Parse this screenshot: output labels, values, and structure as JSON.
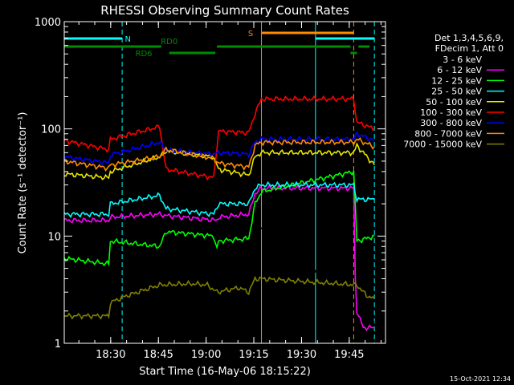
{
  "chart_data": {
    "type": "line",
    "title": "RHESSI Observing Summary Count Rates",
    "xlabel": "Start Time (16-May-06 18:15:22)",
    "ylabel": "Count Rate (s⁻¹ detector⁻¹)",
    "yscale": "log",
    "ylim": [
      1,
      1000
    ],
    "xlim_minutes": [
      0,
      101
    ],
    "x_ticks": [
      {
        "label": "18:30",
        "t": 14.6
      },
      {
        "label": "18:45",
        "t": 29.6
      },
      {
        "label": "19:00",
        "t": 44.6
      },
      {
        "label": "19:15",
        "t": 59.6
      },
      {
        "label": "19:30",
        "t": 74.6
      },
      {
        "label": "19:45",
        "t": 89.6
      }
    ],
    "y_ticks": [
      {
        "label": "1",
        "v": 1
      },
      {
        "label": "10",
        "v": 10
      },
      {
        "label": "100",
        "v": 100
      },
      {
        "label": "1000",
        "v": 1000
      }
    ],
    "legend_header": [
      "Det 1,3,4,5,6,9,",
      "FDecim 1, Att 0"
    ],
    "legend_position": "right",
    "timestamp": "15-Oct-2021 12:34",
    "flags": [
      {
        "name": "N",
        "label": "N",
        "color": "#00ffff",
        "segments": [
          [
            0,
            18.2
          ],
          [
            79,
            97.5
          ]
        ],
        "label_t": 20
      },
      {
        "name": "S",
        "label": "S",
        "color": "#ff8c00",
        "segments": [
          [
            62,
            91
          ]
        ],
        "label_t": 58.6
      },
      {
        "name": "RD0",
        "label": "RD0",
        "color": "#008c00",
        "segments": [
          [
            0,
            30.5
          ],
          [
            48,
            90
          ],
          [
            92.5,
            96
          ]
        ],
        "label_t": 33
      },
      {
        "name": "RD6",
        "label": "RD6",
        "color": "#008c00",
        "segments": [
          [
            33,
            47.5
          ],
          [
            90,
            92
          ]
        ],
        "label_t": 25
      }
    ],
    "markers": [
      {
        "t": 18.2,
        "color": "#00ffff",
        "style": "dashed"
      },
      {
        "t": 62.0,
        "color": "#ff8c00",
        "style": "solid"
      },
      {
        "t": 79.0,
        "color": "#00ffff",
        "style": "solid"
      },
      {
        "t": 91.0,
        "color": "#ff8c00",
        "style": "dashed"
      },
      {
        "t": 97.5,
        "color": "#00ffff",
        "style": "dashed"
      }
    ],
    "series": [
      {
        "name": "3 - 6 keV",
        "color": "#000000",
        "points": [
          [
            0,
            1.7
          ],
          [
            14,
            1.7
          ],
          [
            14.5,
            2.5
          ],
          [
            20,
            2.6
          ],
          [
            30,
            3.3
          ],
          [
            40,
            3.5
          ],
          [
            45,
            3.0
          ],
          [
            48,
            2.7
          ],
          [
            55,
            2.6
          ],
          [
            58,
            2.5
          ],
          [
            60,
            4
          ],
          [
            61,
            8
          ],
          [
            61.5,
            12
          ],
          [
            62,
            12
          ],
          [
            92,
            2.5
          ],
          [
            95,
            1.6
          ],
          [
            97.5,
            1.6
          ]
        ]
      },
      {
        "name": "6 - 12 keV",
        "color": "#ff00ff",
        "points": [
          [
            0,
            14
          ],
          [
            14,
            14
          ],
          [
            14.5,
            15
          ],
          [
            30,
            16
          ],
          [
            32,
            15.5
          ],
          [
            48,
            14
          ],
          [
            48.5,
            15
          ],
          [
            58,
            16
          ],
          [
            60,
            25
          ],
          [
            62,
            28
          ],
          [
            91,
            28
          ],
          [
            91.5,
            4
          ],
          [
            92,
            2
          ],
          [
            94,
            1.4
          ],
          [
            97.5,
            1.4
          ]
        ]
      },
      {
        "name": "12 - 25 keV",
        "color": "#00ff00",
        "points": [
          [
            0,
            6.2
          ],
          [
            14,
            5.5
          ],
          [
            14.5,
            9
          ],
          [
            30,
            8
          ],
          [
            32,
            11
          ],
          [
            47,
            10
          ],
          [
            48,
            7.5
          ],
          [
            48.5,
            9
          ],
          [
            58,
            9.5
          ],
          [
            60,
            20
          ],
          [
            62,
            26
          ],
          [
            91,
            40
          ],
          [
            92,
            9
          ],
          [
            95,
            9.5
          ],
          [
            97.5,
            10
          ]
        ]
      },
      {
        "name": "25 - 50 keV",
        "color": "#00ffff",
        "points": [
          [
            0,
            16
          ],
          [
            14,
            16
          ],
          [
            14.5,
            20
          ],
          [
            30,
            24
          ],
          [
            32,
            18
          ],
          [
            47,
            16
          ],
          [
            48.5,
            20
          ],
          [
            58,
            20
          ],
          [
            60,
            28
          ],
          [
            62,
            30
          ],
          [
            91,
            30
          ],
          [
            92,
            22
          ],
          [
            97.5,
            22
          ]
        ]
      },
      {
        "name": "50 - 100 keV",
        "color": "#e6e600",
        "points": [
          [
            0,
            38
          ],
          [
            14,
            35
          ],
          [
            14.5,
            40
          ],
          [
            30,
            55
          ],
          [
            32,
            62
          ],
          [
            47,
            55
          ],
          [
            48.5,
            42
          ],
          [
            58,
            37
          ],
          [
            60,
            55
          ],
          [
            62,
            60
          ],
          [
            91,
            60
          ],
          [
            92,
            70
          ],
          [
            97.5,
            46
          ]
        ]
      },
      {
        "name": "100 - 300 keV",
        "color": "#ff0000",
        "points": [
          [
            0,
            78
          ],
          [
            14,
            64
          ],
          [
            14.5,
            80
          ],
          [
            30,
            105
          ],
          [
            32,
            42
          ],
          [
            47,
            35
          ],
          [
            48.5,
            95
          ],
          [
            58,
            92
          ],
          [
            60,
            140
          ],
          [
            62,
            190
          ],
          [
            91,
            190
          ],
          [
            92,
            115
          ],
          [
            97.5,
            100
          ]
        ]
      },
      {
        "name": "300 - 800 keV",
        "color": "#0000ff",
        "points": [
          [
            0,
            55
          ],
          [
            14,
            48
          ],
          [
            14.5,
            57
          ],
          [
            30,
            75
          ],
          [
            32,
            63
          ],
          [
            47,
            58
          ],
          [
            48.5,
            60
          ],
          [
            58,
            58
          ],
          [
            60,
            75
          ],
          [
            62,
            80
          ],
          [
            91,
            80
          ],
          [
            92,
            90
          ],
          [
            97.5,
            78
          ]
        ]
      },
      {
        "name": "800 - 7000 keV",
        "color": "#ff8c00",
        "points": [
          [
            0,
            50
          ],
          [
            14,
            43
          ],
          [
            14.5,
            46
          ],
          [
            30,
            55
          ],
          [
            32,
            64
          ],
          [
            47,
            53
          ],
          [
            48.5,
            48
          ],
          [
            58,
            44
          ],
          [
            60,
            70
          ],
          [
            62,
            75
          ],
          [
            91,
            75
          ],
          [
            92,
            80
          ],
          [
            97.5,
            68
          ]
        ]
      },
      {
        "name": "7000 - 15000 keV",
        "color": "#808000",
        "points": [
          [
            0,
            1.8
          ],
          [
            14,
            1.8
          ],
          [
            14.5,
            2.4
          ],
          [
            20,
            2.8
          ],
          [
            30,
            3.5
          ],
          [
            40,
            3.6
          ],
          [
            45,
            3.5
          ],
          [
            48,
            3.0
          ],
          [
            55,
            3.3
          ],
          [
            58,
            3.0
          ],
          [
            60,
            4
          ],
          [
            62,
            4
          ],
          [
            92,
            3.5
          ],
          [
            95,
            2.8
          ],
          [
            97.5,
            2.6
          ]
        ]
      }
    ]
  }
}
